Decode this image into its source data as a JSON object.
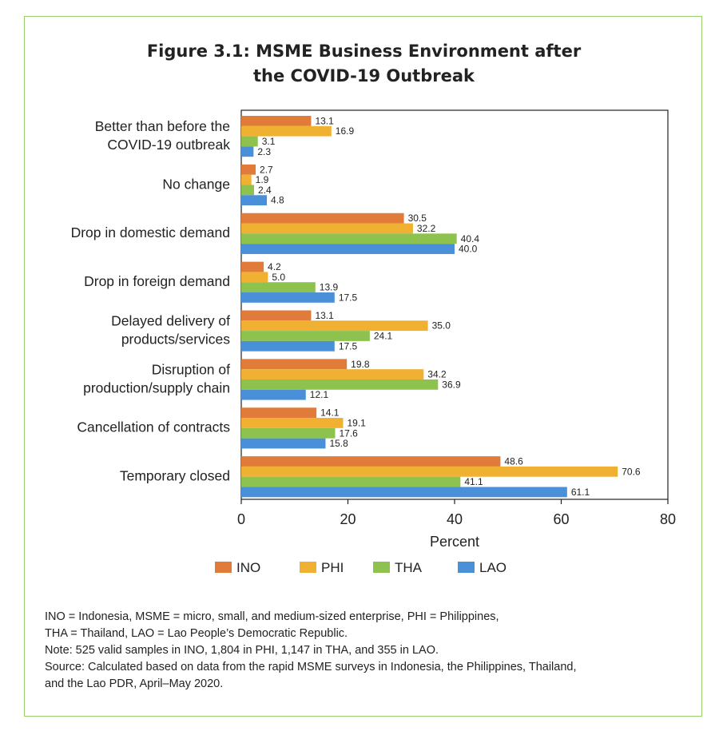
{
  "title_lines": [
    "Figure 3.1: MSME Business Environment after",
    "the COVID-19 Outbreak"
  ],
  "chart_data": {
    "type": "bar",
    "orientation": "horizontal",
    "categories": [
      [
        "Better than before the",
        "COVID-19 outbreak"
      ],
      [
        "No change"
      ],
      [
        "Drop in domestic demand"
      ],
      [
        "Drop in foreign demand"
      ],
      [
        "Delayed delivery of",
        "products/services"
      ],
      [
        "Disruption of",
        "production/supply chain"
      ],
      [
        "Cancellation of contracts"
      ],
      [
        "Temporary closed"
      ]
    ],
    "series": [
      {
        "name": "INO",
        "color": "#e07b39",
        "values": [
          13.1,
          2.7,
          30.5,
          4.2,
          13.1,
          19.8,
          14.1,
          48.6
        ],
        "labels": [
          "13.1",
          "2.7",
          "30.5",
          "4.2",
          "13.1",
          "19.8",
          "14.1",
          "48.6"
        ]
      },
      {
        "name": "PHI",
        "color": "#f0b132",
        "values": [
          16.9,
          1.9,
          32.2,
          5.0,
          35.0,
          34.2,
          19.1,
          70.6
        ],
        "labels": [
          "16.9",
          "1.9",
          "32.2",
          "5.0",
          "35.0",
          "34.2",
          "19.1",
          "70.6"
        ]
      },
      {
        "name": "THA",
        "color": "#8dc24f",
        "values": [
          3.1,
          2.4,
          40.4,
          13.9,
          24.1,
          36.9,
          17.6,
          41.1
        ],
        "labels": [
          "3.1",
          "2.4",
          "40.4",
          "13.9",
          "24.1",
          "36.9",
          "17.6",
          "41.1"
        ]
      },
      {
        "name": "LAO",
        "color": "#4a90d9",
        "values": [
          2.3,
          4.8,
          40.0,
          17.5,
          17.5,
          12.1,
          15.8,
          61.1
        ],
        "labels": [
          "2.3",
          "4.8",
          "40.0",
          "17.5",
          "17.5",
          "12.1",
          "15.8",
          "61.1"
        ]
      }
    ],
    "xlabel": "Percent",
    "xlim": [
      0,
      80
    ],
    "xticks": [
      0,
      20,
      40,
      60,
      80
    ],
    "grid": false,
    "legend_position": "bottom"
  },
  "notes": [
    "INO = Indonesia, MSME = micro, small, and medium-sized enterprise, PHI = Philippines,",
    "THA = Thailand, LAO = Lao People’s Democratic Republic.",
    "Note: 525 valid samples in INO, 1,804 in PHI, 1,147 in THA, and 355 in LAO.",
    "Source: Calculated based on data from the rapid MSME surveys in Indonesia, the Philippines, Thailand,",
    "and the Lao PDR, April–May 2020."
  ]
}
